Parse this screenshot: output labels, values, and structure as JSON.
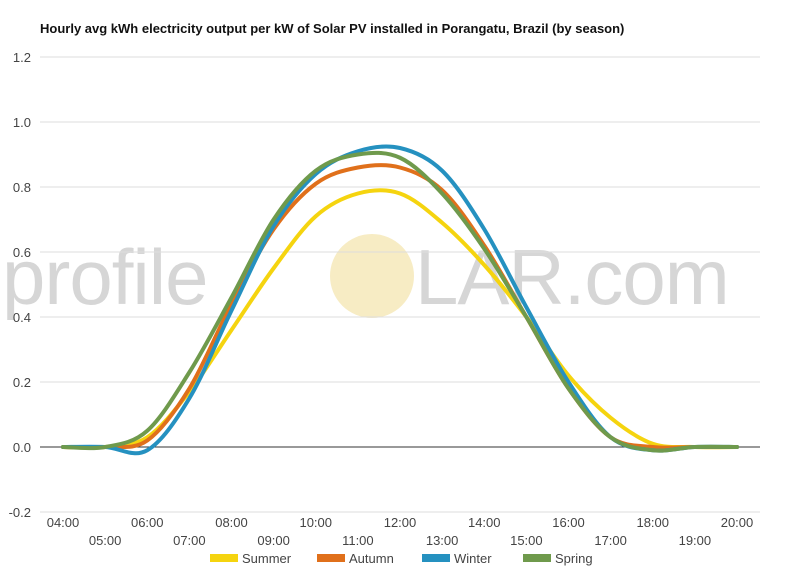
{
  "chart_data": {
    "type": "line",
    "title": "Hourly avg kWh electricity output per kW of Solar PV installed in Porangatu, Brazil (by season)",
    "watermark": {
      "pre": "profile",
      "post": "LAR.com"
    },
    "xlabel": "",
    "ylabel": "",
    "x": [
      "04:00",
      "05:00",
      "06:00",
      "07:00",
      "08:00",
      "09:00",
      "10:00",
      "11:00",
      "12:00",
      "13:00",
      "14:00",
      "15:00",
      "16:00",
      "17:00",
      "18:00",
      "19:00",
      "20:00"
    ],
    "ylim": [
      -0.2,
      1.2
    ],
    "yticks": [
      "-0.2",
      "0.0",
      "0.2",
      "0.4",
      "0.6",
      "0.8",
      "1.0",
      "1.2"
    ],
    "grid": true,
    "legend_position": "bottom",
    "series": [
      {
        "name": "Summer",
        "color": "#f5d40f",
        "values": [
          0,
          0,
          0.03,
          0.17,
          0.36,
          0.55,
          0.71,
          0.78,
          0.78,
          0.69,
          0.56,
          0.4,
          0.22,
          0.09,
          0.01,
          0,
          0
        ]
      },
      {
        "name": "Autumn",
        "color": "#e0701b",
        "values": [
          0,
          0,
          0.02,
          0.18,
          0.44,
          0.67,
          0.81,
          0.86,
          0.86,
          0.79,
          0.62,
          0.4,
          0.18,
          0.03,
          0,
          0,
          0
        ]
      },
      {
        "name": "Winter",
        "color": "#2591c0",
        "values": [
          0,
          0,
          -0.01,
          0.15,
          0.42,
          0.68,
          0.84,
          0.91,
          0.92,
          0.85,
          0.67,
          0.43,
          0.2,
          0.03,
          -0.01,
          0,
          0
        ]
      },
      {
        "name": "Spring",
        "color": "#6f9a4c",
        "values": [
          0,
          0,
          0.05,
          0.23,
          0.46,
          0.7,
          0.85,
          0.9,
          0.89,
          0.78,
          0.61,
          0.4,
          0.18,
          0.03,
          -0.01,
          0,
          0
        ]
      }
    ]
  }
}
